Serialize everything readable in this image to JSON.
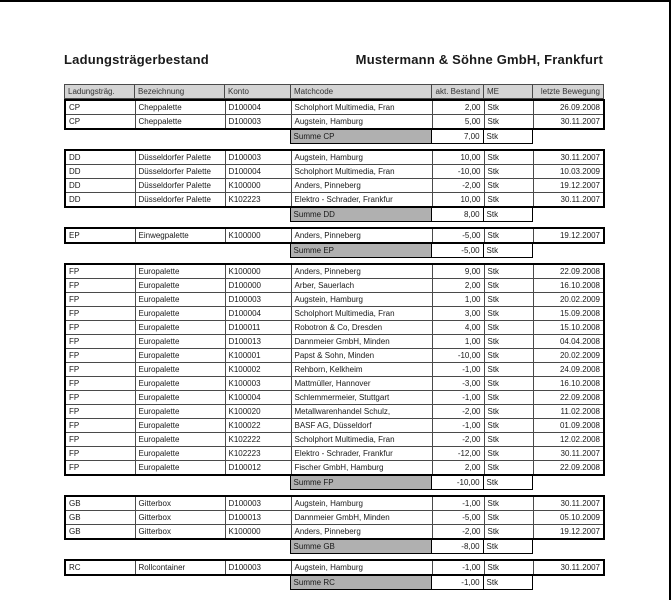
{
  "header": {
    "title_left": "Ladungsträgerbestand",
    "title_right": "Mustermann & Söhne GmbH, Frankfurt"
  },
  "colors": {
    "header_bg": "#d4d4d4",
    "summe_bg": "#b0b0b0",
    "frame": "#000000"
  },
  "table": {
    "columns": [
      "Ladungsträg.",
      "Bezeichnung",
      "Konto",
      "Matchcode",
      "akt. Bestand",
      "ME",
      "letzte Bewegung"
    ],
    "groups": [
      {
        "code": "CP",
        "name": "Cheppalette",
        "rows": [
          {
            "konto": "D100004",
            "matchcode": "Scholphort Multimedia, Fran",
            "bestand": "2,00",
            "me": "Stk",
            "bewegung": "26.09.2008"
          },
          {
            "konto": "D100003",
            "matchcode": "Augstein, Hamburg",
            "bestand": "5,00",
            "me": "Stk",
            "bewegung": "30.11.2007"
          }
        ],
        "summe_label": "Summe CP",
        "summe": "7,00",
        "summe_me": "Stk"
      },
      {
        "code": "DD",
        "name": "Düsseldorfer Palette",
        "rows": [
          {
            "konto": "D100003",
            "matchcode": "Augstein, Hamburg",
            "bestand": "10,00",
            "me": "Stk",
            "bewegung": "30.11.2007"
          },
          {
            "konto": "D100004",
            "matchcode": "Scholphort Multimedia, Fran",
            "bestand": "-10,00",
            "me": "Stk",
            "bewegung": "10.03.2009"
          },
          {
            "konto": "K100000",
            "matchcode": "Anders, Pinneberg",
            "bestand": "-2,00",
            "me": "Stk",
            "bewegung": "19.12.2007"
          },
          {
            "konto": "K102223",
            "matchcode": "Elektro - Schrader, Frankfur",
            "bestand": "10,00",
            "me": "Stk",
            "bewegung": "30.11.2007"
          }
        ],
        "summe_label": "Summe DD",
        "summe": "8,00",
        "summe_me": "Stk"
      },
      {
        "code": "EP",
        "name": "Einwegpalette",
        "rows": [
          {
            "konto": "K100000",
            "matchcode": "Anders, Pinneberg",
            "bestand": "-5,00",
            "me": "Stk",
            "bewegung": "19.12.2007"
          }
        ],
        "summe_label": "Summe EP",
        "summe": "-5,00",
        "summe_me": "Stk"
      },
      {
        "code": "FP",
        "name": "Europalette",
        "rows": [
          {
            "konto": "K100000",
            "matchcode": "Anders, Pinneberg",
            "bestand": "9,00",
            "me": "Stk",
            "bewegung": "22.09.2008"
          },
          {
            "konto": "D100000",
            "matchcode": "Arber, Sauerlach",
            "bestand": "2,00",
            "me": "Stk",
            "bewegung": "16.10.2008"
          },
          {
            "konto": "D100003",
            "matchcode": "Augstein, Hamburg",
            "bestand": "1,00",
            "me": "Stk",
            "bewegung": "20.02.2009"
          },
          {
            "konto": "D100004",
            "matchcode": "Scholphort Multimedia, Fran",
            "bestand": "3,00",
            "me": "Stk",
            "bewegung": "15.09.2008"
          },
          {
            "konto": "D100011",
            "matchcode": "Robotron & Co, Dresden",
            "bestand": "4,00",
            "me": "Stk",
            "bewegung": "15.10.2008"
          },
          {
            "konto": "D100013",
            "matchcode": "Dannmeier GmbH, Minden",
            "bestand": "1,00",
            "me": "Stk",
            "bewegung": "04.04.2008"
          },
          {
            "konto": "K100001",
            "matchcode": "Papst & Sohn, Minden",
            "bestand": "-10,00",
            "me": "Stk",
            "bewegung": "20.02.2009"
          },
          {
            "konto": "K100002",
            "matchcode": "Rehborn, Kelkheim",
            "bestand": "-1,00",
            "me": "Stk",
            "bewegung": "24.09.2008"
          },
          {
            "konto": "K100003",
            "matchcode": "Mattmüller, Hannover",
            "bestand": "-3,00",
            "me": "Stk",
            "bewegung": "16.10.2008"
          },
          {
            "konto": "K100004",
            "matchcode": "Schlemmermeier, Stuttgart",
            "bestand": "-1,00",
            "me": "Stk",
            "bewegung": "22.09.2008"
          },
          {
            "konto": "K100020",
            "matchcode": "Metallwarenhandel Schulz,",
            "bestand": "-2,00",
            "me": "Stk",
            "bewegung": "11.02.2008"
          },
          {
            "konto": "K100022",
            "matchcode": "BASF AG, Düsseldorf",
            "bestand": "-1,00",
            "me": "Stk",
            "bewegung": "01.09.2008"
          },
          {
            "konto": "K102222",
            "matchcode": "Scholphort Multimedia, Fran",
            "bestand": "-2,00",
            "me": "Stk",
            "bewegung": "12.02.2008"
          },
          {
            "konto": "K102223",
            "matchcode": "Elektro - Schrader, Frankfur",
            "bestand": "-12,00",
            "me": "Stk",
            "bewegung": "30.11.2007"
          },
          {
            "konto": "D100012",
            "matchcode": "Fischer GmbH, Hamburg",
            "bestand": "2,00",
            "me": "Stk",
            "bewegung": "22.09.2008"
          }
        ],
        "summe_label": "Summe FP",
        "summe": "-10,00",
        "summe_me": "Stk"
      },
      {
        "code": "GB",
        "name": "Gitterbox",
        "rows": [
          {
            "konto": "D100003",
            "matchcode": "Augstein, Hamburg",
            "bestand": "-1,00",
            "me": "Stk",
            "bewegung": "30.11.2007"
          },
          {
            "konto": "D100013",
            "matchcode": "Dannmeier GmbH, Minden",
            "bestand": "-5,00",
            "me": "Stk",
            "bewegung": "05.10.2009"
          },
          {
            "konto": "K100000",
            "matchcode": "Anders, Pinneberg",
            "bestand": "-2,00",
            "me": "Stk",
            "bewegung": "19.12.2007"
          }
        ],
        "summe_label": "Summe GB",
        "summe": "-8,00",
        "summe_me": "Stk"
      },
      {
        "code": "RC",
        "name": "Rollcontainer",
        "rows": [
          {
            "konto": "D100003",
            "matchcode": "Augstein, Hamburg",
            "bestand": "-1,00",
            "me": "Stk",
            "bewegung": "30.11.2007"
          }
        ],
        "summe_label": "Summe RC",
        "summe": "-1,00",
        "summe_me": "Stk"
      }
    ]
  }
}
